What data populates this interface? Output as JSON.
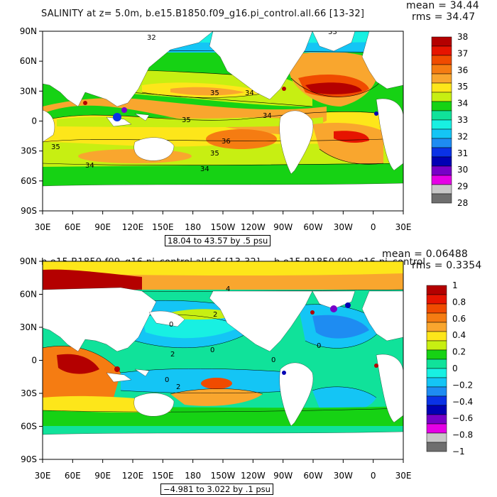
{
  "panels": [
    {
      "title": "SALINITY at z=   5.0m, b.e15.B1850.f09_g16.pi_control.all.66 [13-32]",
      "mean_label": "mean = 34.44",
      "rms_label": "rms = 34.47",
      "range_label": "18.04 to 43.57 by .5 psu",
      "x_ticks": [
        "30E",
        "60E",
        "90E",
        "120E",
        "150E",
        "180",
        "150W",
        "120W",
        "90W",
        "60W",
        "30W",
        "0",
        "30E"
      ],
      "y_ticks": [
        "90N",
        "60N",
        "30N",
        "0",
        "30S",
        "60S",
        "90S"
      ],
      "colorbar_labels": [
        "38",
        "37",
        "36",
        "35",
        "34",
        "33",
        "32",
        "31",
        "30",
        "29",
        "28"
      ],
      "colorbar_colors": [
        "#b40000",
        "#e61400",
        "#f04b00",
        "#f57c12",
        "#f9a62e",
        "#fde61a",
        "#c7ef12",
        "#16d214",
        "#10e29a",
        "#18f0e2",
        "#14c5f5",
        "#1e8cf2",
        "#0a32e6",
        "#0000b4",
        "#7800c8",
        "#e600e6",
        "#c8c8c8",
        "#6e6e6e"
      ],
      "contour_labels": [
        {
          "text": "32"
        },
        {
          "text": "33"
        },
        {
          "text": "34"
        },
        {
          "text": "35"
        },
        {
          "text": "35"
        },
        {
          "text": "34"
        },
        {
          "text": "36"
        },
        {
          "text": "35"
        },
        {
          "text": "35"
        },
        {
          "text": "34"
        },
        {
          "text": "34"
        }
      ]
    },
    {
      "title": "b.e15.B1850.f09_g16.pi_control.all.66 [13-32] − b.e15.B1850.f09_g16.pi_control",
      "mean_label": "mean = 0.06488",
      "rms_label": "rms = 0.3354",
      "range_label": "−4.981 to 3.022 by .1 psu",
      "x_ticks": [
        "30E",
        "60E",
        "90E",
        "120E",
        "150E",
        "180",
        "150W",
        "120W",
        "90W",
        "60W",
        "30W",
        "0",
        "30E"
      ],
      "y_ticks": [
        "90N",
        "60N",
        "30N",
        "0",
        "30S",
        "60S",
        "90S"
      ],
      "colorbar_labels": [
        "1",
        "0.8",
        "0.6",
        "0.4",
        "0.2",
        "0",
        "−0.2",
        "−0.4",
        "−0.6",
        "−0.8",
        "−1"
      ],
      "colorbar_colors": [
        "#b40000",
        "#e61400",
        "#f04b00",
        "#f57c12",
        "#f9a62e",
        "#fde61a",
        "#c7ef12",
        "#16d214",
        "#10e29a",
        "#18f0e2",
        "#14c5f5",
        "#1e8cf2",
        "#0a32e6",
        "#0000b4",
        "#7800c8",
        "#e600e6",
        "#c8c8c8",
        "#6e6e6e"
      ],
      "contour_labels": [
        {
          "text": "4"
        },
        {
          "text": "2"
        },
        {
          "text": "0"
        },
        {
          "text": "2"
        },
        {
          "text": "0"
        },
        {
          "text": "0"
        },
        {
          "text": "0"
        },
        {
          "text": "2"
        },
        {
          "text": "0"
        }
      ]
    }
  ]
}
